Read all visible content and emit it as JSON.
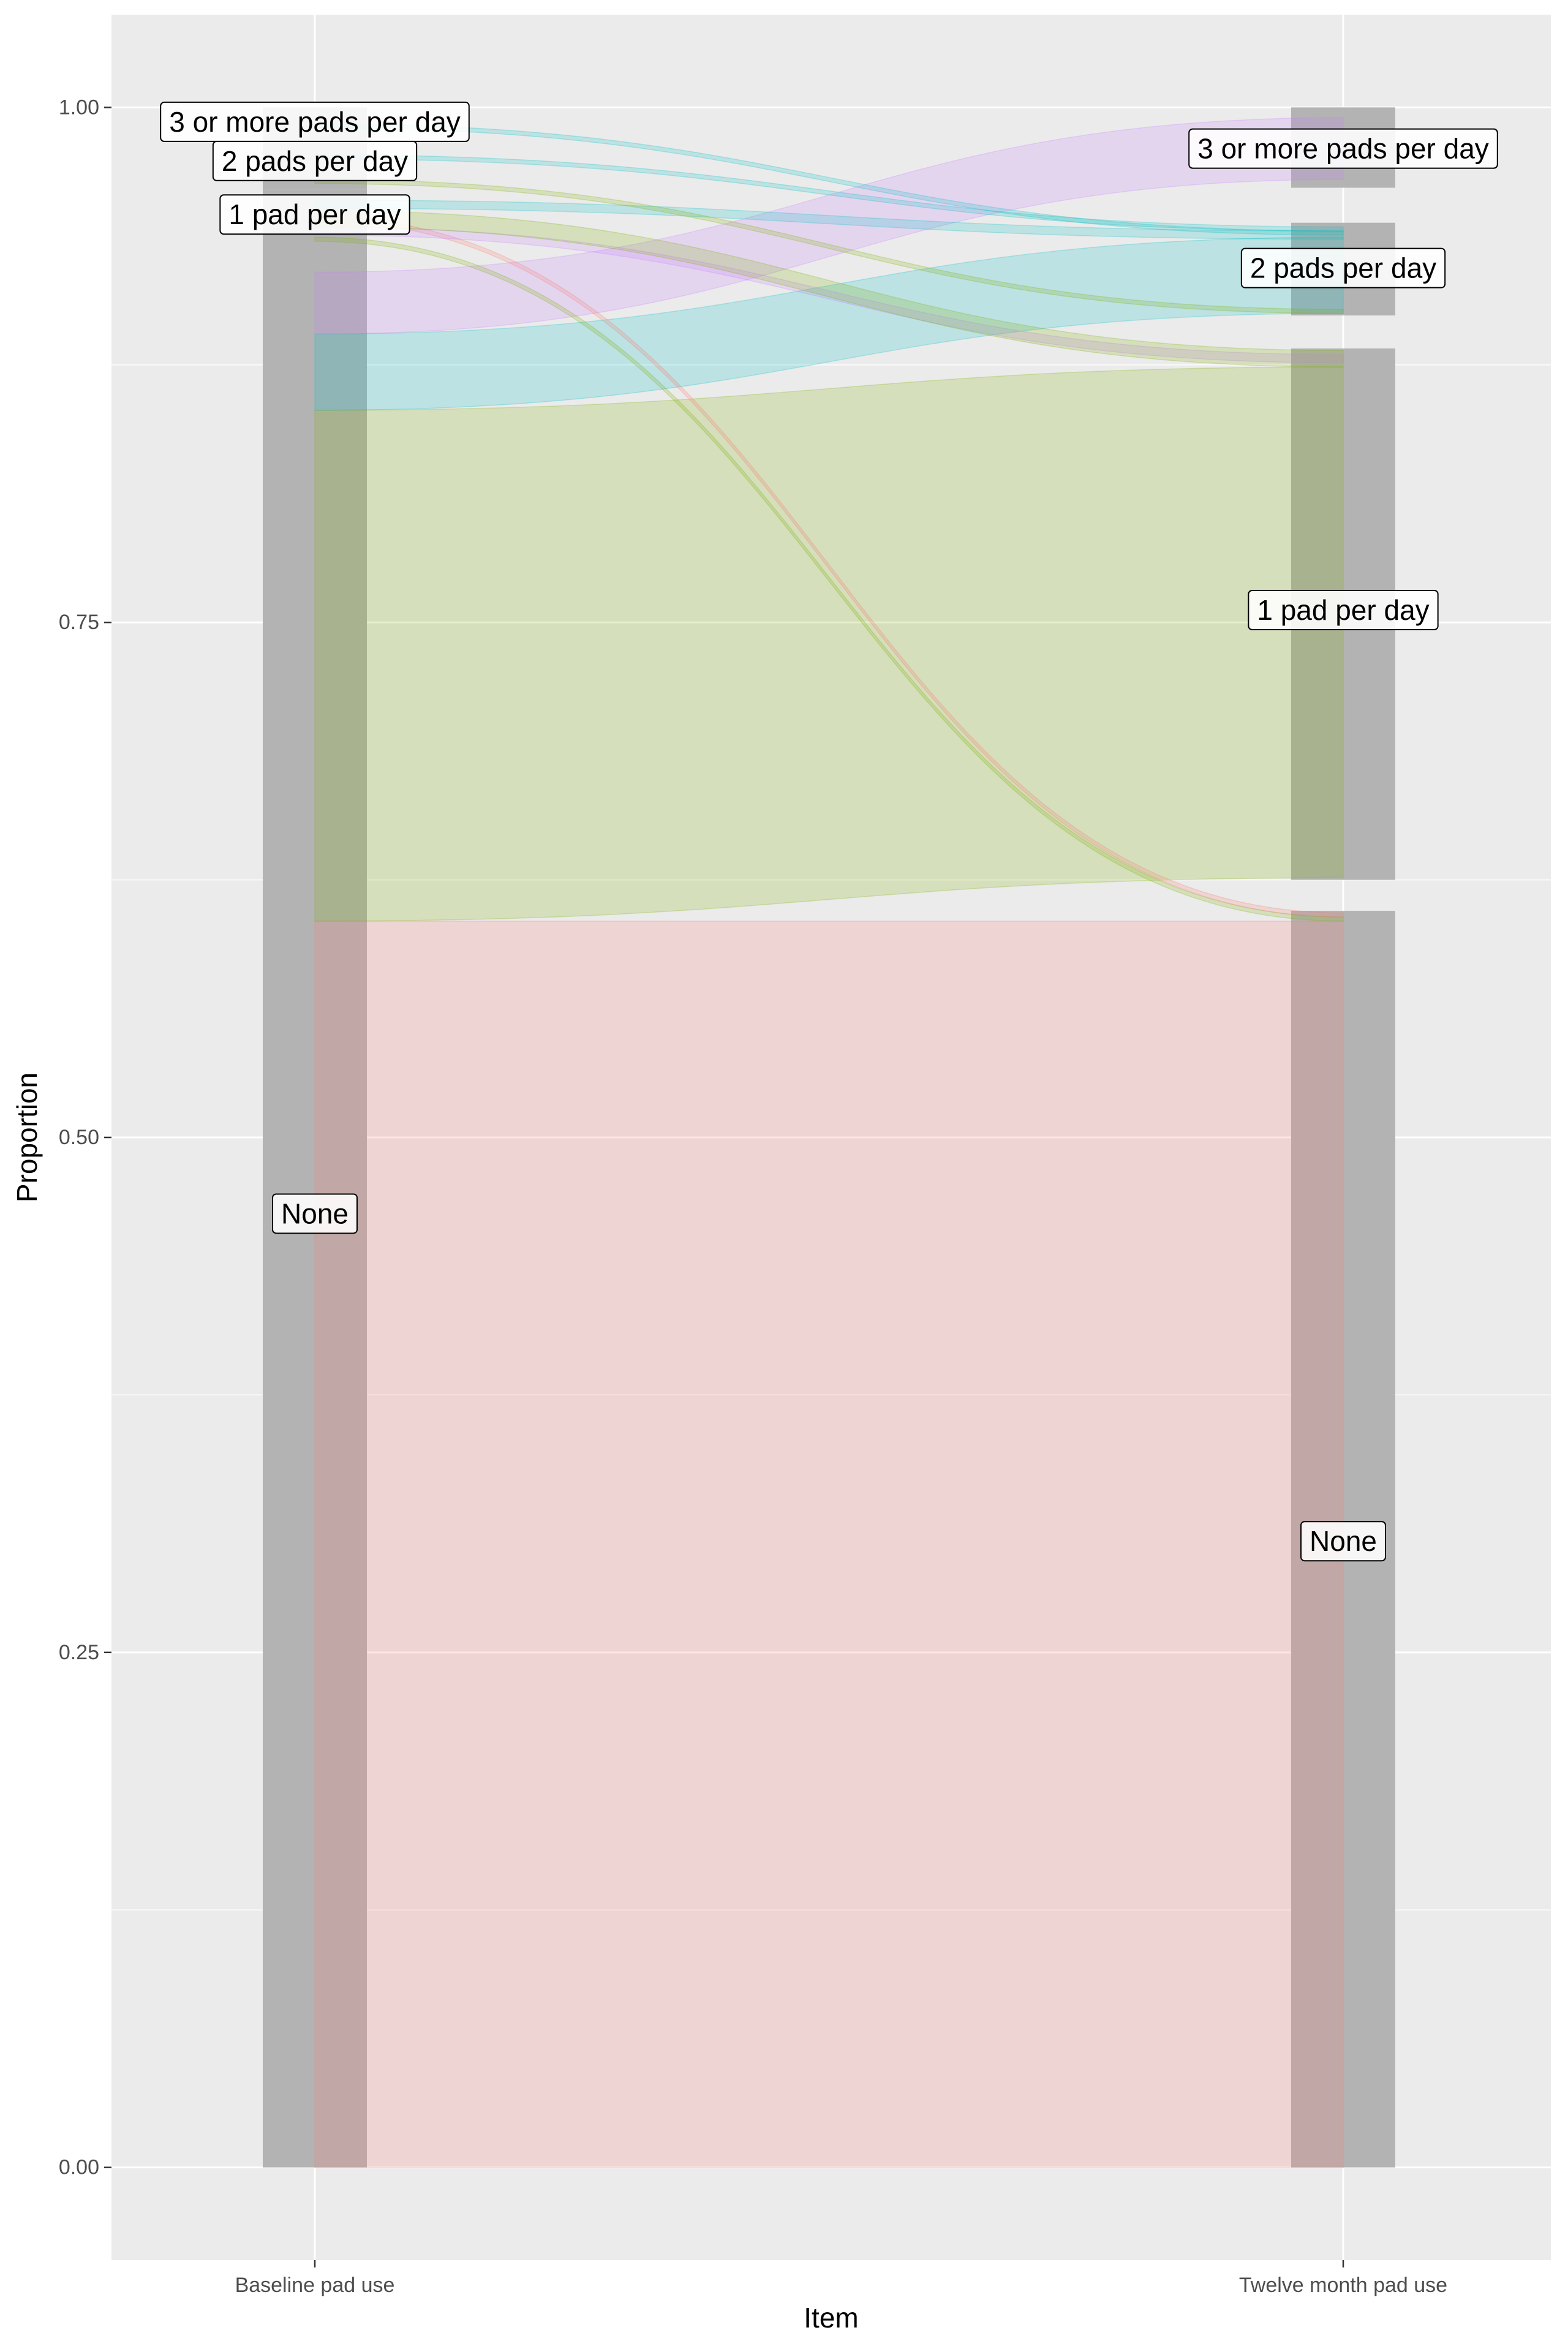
{
  "chart_data": {
    "type": "alluvial",
    "title": "",
    "xlabel": "Item",
    "ylabel": "Proportion",
    "ylim": [
      -0.045,
      1.045
    ],
    "y_ticks": [
      0,
      0.25,
      0.5,
      0.75,
      1.0
    ],
    "y_tick_labels": [
      "0.00",
      "0.25",
      "0.50",
      "0.75",
      "1.00"
    ],
    "grid": true,
    "legend": "none",
    "axes": [
      "Baseline pad use",
      "Twelve month pad use"
    ],
    "strata": {
      "Baseline pad use": [
        {
          "label": "None",
          "ymin": 0.0,
          "ymax": 0.925
        },
        {
          "label": "1 pad per day",
          "ymin": 0.925,
          "ymax": 0.96
        },
        {
          "label": "2 pads per day",
          "ymin": 0.96,
          "ymax": 0.985
        },
        {
          "label": "3 or more pads per day",
          "ymin": 0.985,
          "ymax": 1.0
        }
      ],
      "Twelve month pad use": [
        {
          "label": "None",
          "ymin": 0.0,
          "ymax": 0.61
        },
        {
          "label": "1 pad per day",
          "ymin": 0.625,
          "ymax": 0.883
        },
        {
          "label": "2 pads per day",
          "ymin": 0.899,
          "ymax": 0.944
        },
        {
          "label": "3 or more pads per day",
          "ymin": 0.961,
          "ymax": 1.0
        }
      ]
    },
    "stratum_label_y": {
      "Baseline pad use": [
        0.463,
        0.948,
        0.974,
        0.993
      ],
      "Twelve month pad use": [
        0.304,
        0.756,
        0.922,
        0.98
      ]
    },
    "series": [
      {
        "name": "None",
        "color": "#F8766D"
      },
      {
        "name": "1 pad per day",
        "color": "#7CAE00"
      },
      {
        "name": "2 pads per day",
        "color": "#00BFC4"
      },
      {
        "name": "3 or more pads per day",
        "color": "#C77CFF"
      }
    ],
    "flows": [
      {
        "from": "None",
        "to": "None",
        "color_index": 0,
        "left": [
          0.0,
          0.605
        ],
        "right": [
          0.0,
          0.605
        ]
      },
      {
        "from": "1 pad per day",
        "to": "1 pad per day",
        "color_index": 1,
        "left": [
          0.605,
          0.853
        ],
        "right": [
          0.626,
          0.874
        ]
      },
      {
        "from": "2 pads per day",
        "to": "2 pads per day",
        "color_index": 2,
        "left": [
          0.853,
          0.89
        ],
        "right": [
          0.9,
          0.937
        ]
      },
      {
        "from": "3 or more pads per day",
        "to": "3 or more pads per day",
        "color_index": 3,
        "left": [
          0.89,
          0.92
        ],
        "right": [
          0.965,
          0.995
        ]
      },
      {
        "from": "1 pad per day",
        "to": "None",
        "color_index": 1,
        "left": [
          0.935,
          0.937
        ],
        "right": [
          0.605,
          0.607
        ]
      },
      {
        "from": "None",
        "to": "None",
        "color_index": 0,
        "left": [
          0.945,
          0.947
        ],
        "right": [
          0.607,
          0.609
        ]
      },
      {
        "from": "3 or more pads per day",
        "to": "1 pad per day",
        "color_index": 3,
        "left": [
          0.938,
          0.942
        ],
        "right": [
          0.876,
          0.88
        ]
      },
      {
        "from": "1 pad per day",
        "to": "1 pad per day",
        "color_index": 1,
        "left": [
          0.942,
          0.95
        ],
        "right": [
          0.874,
          0.882
        ]
      },
      {
        "from": "2 pads per day",
        "to": "2 pads per day",
        "color_index": 2,
        "left": [
          0.951,
          0.955
        ],
        "right": [
          0.936,
          0.94
        ]
      },
      {
        "from": "1 pad per day",
        "to": "2 pads per day",
        "color_index": 1,
        "left": [
          0.963,
          0.965
        ],
        "right": [
          0.9,
          0.902
        ]
      },
      {
        "from": "2 pads per day",
        "to": "2 pads per day",
        "color_index": 2,
        "left": [
          0.975,
          0.977
        ],
        "right": [
          0.94,
          0.942
        ]
      },
      {
        "from": "2 pads per day",
        "to": "2 pads per day",
        "color_index": 2,
        "left": [
          0.99,
          0.992
        ],
        "right": [
          0.938,
          0.94
        ]
      }
    ]
  }
}
